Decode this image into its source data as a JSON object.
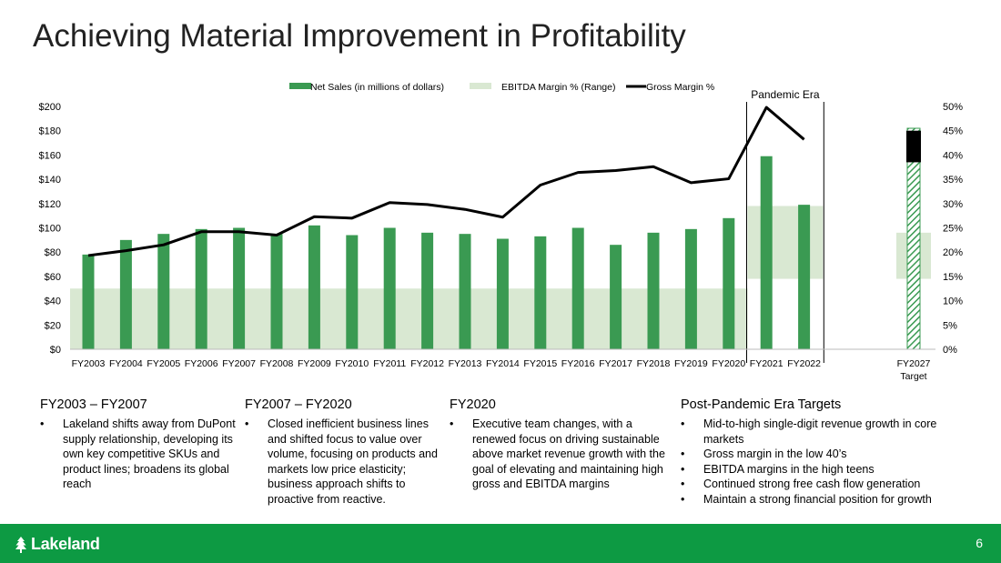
{
  "slide": {
    "title": "Achieving Material Improvement in Profitability",
    "page_number": "6"
  },
  "brand": {
    "logo_text": "Lakeland",
    "footer_color": "#0d9a43"
  },
  "chart_data": {
    "type": "bar",
    "categories": [
      "FY2003",
      "FY2004",
      "FY2005",
      "FY2006",
      "FY2007",
      "FY2008",
      "FY2009",
      "FY2010",
      "FY2011",
      "FY2012",
      "FY2013",
      "FY2014",
      "FY2015",
      "FY2016",
      "FY2017",
      "FY2018",
      "FY2019",
      "FY2020",
      "FY2021",
      "FY2022"
    ],
    "target_category": [
      "FY2027",
      "Target"
    ],
    "series": [
      {
        "name": "Net Sales (in millions of dollars)",
        "axis": "left",
        "type": "bar",
        "color": "#3a9a52",
        "values": [
          78,
          90,
          95,
          99,
          100,
          95,
          102,
          94,
          100,
          96,
          95,
          91,
          93,
          100,
          86,
          96,
          99,
          108,
          159,
          119
        ]
      },
      {
        "name": "EBITDA Margin % (Range)",
        "axis": "right",
        "type": "band",
        "color": "#d9e8d2",
        "ranges": [
          {
            "from": "FY2003",
            "to": "FY2020",
            "low": 0,
            "high": 12.5
          },
          {
            "from": "FY2021",
            "to": "FY2022",
            "low": 14.5,
            "high": 29.5
          },
          {
            "from": "FY2027",
            "to": "FY2027",
            "low": 14.5,
            "high": 24
          }
        ]
      },
      {
        "name": "Gross Margin %",
        "axis": "right",
        "type": "line",
        "color": "#000000",
        "values": [
          19.3,
          20.3,
          21.5,
          24.2,
          24.2,
          23.5,
          27.3,
          27,
          30.2,
          29.8,
          28.8,
          27.2,
          33.8,
          36.4,
          36.8,
          37.6,
          34.3,
          35.1,
          49.8,
          43.2
        ],
        "target_range": [
          38.5,
          45
        ]
      }
    ],
    "target_net_sales": 182,
    "left_axis": {
      "min": 0,
      "max": 200,
      "ticks": [
        "$0",
        "$20",
        "$40",
        "$60",
        "$80",
        "$100",
        "$120",
        "$140",
        "$160",
        "$180",
        "$200"
      ]
    },
    "right_axis": {
      "min": 0,
      "max": 50,
      "ticks": [
        "0%",
        "5%",
        "10%",
        "15%",
        "20%",
        "25%",
        "30%",
        "35%",
        "40%",
        "45%",
        "50%"
      ]
    },
    "annotation": {
      "label": "Pandemic Era",
      "from": "FY2021",
      "to": "FY2022"
    },
    "legend_position": "top"
  },
  "columns": [
    {
      "heading": "FY2003 – FY2007",
      "bullets": [
        "Lakeland shifts away from DuPont supply relationship, developing  its own key competitive SKUs and product lines; broadens its global reach"
      ]
    },
    {
      "heading": "FY2007 – FY2020",
      "bullets": [
        "Closed inefficient business lines and shifted focus to value over volume, focusing on products and markets low price elasticity; business approach shifts to proactive from reactive."
      ]
    },
    {
      "heading": "FY2020",
      "bullets": [
        "Executive team changes, with a renewed focus on driving sustainable above market revenue growth with the goal of elevating and maintaining high gross and EBITDA margins"
      ]
    },
    {
      "heading": "Post-Pandemic Era Targets",
      "bullets": [
        " Mid-to-high single-digit revenue growth in core markets",
        "Gross margin in the low 40’s",
        "EBITDA margins in the high teens",
        "Continued strong free cash flow generation",
        "Maintain a strong financial position for growth"
      ]
    }
  ]
}
